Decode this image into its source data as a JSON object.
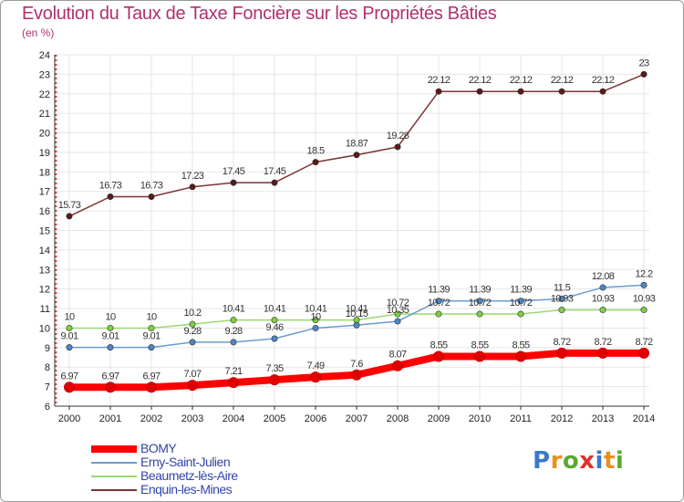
{
  "header": {
    "title": "Evolution du Taux de Taxe Foncière sur les Propriétés Bâties",
    "unit": "(en %)"
  },
  "logo": {
    "text": "Proxiti",
    "colors": [
      "#3b78c8",
      "#e8901c",
      "#5aaa30",
      "#e03030",
      "#3b78c8",
      "#e8901c",
      "#5aaa30"
    ]
  },
  "chart_data": {
    "type": "line",
    "title": "Evolution du Taux de Taxe Foncière sur les Propriétés Bâties",
    "ylabel": "(en %)",
    "xlabel": "",
    "ylim": [
      6,
      24
    ],
    "yticks": [
      6,
      7,
      8,
      9,
      10,
      11,
      12,
      13,
      14,
      15,
      16,
      17,
      18,
      19,
      20,
      21,
      22,
      23,
      24
    ],
    "categories": [
      "2000",
      "2001",
      "2002",
      "2003",
      "2004",
      "2005",
      "2006",
      "2007",
      "2008",
      "2009",
      "2010",
      "2011",
      "2012",
      "2013",
      "2014"
    ],
    "legend_position": "bottom-left",
    "series": [
      {
        "name": "BOMY",
        "color": "#ff0000",
        "marker": "#e00000",
        "thick": true,
        "values": [
          6.97,
          6.97,
          6.97,
          7.07,
          7.21,
          7.35,
          7.49,
          7.6,
          8.07,
          8.55,
          8.55,
          8.55,
          8.72,
          8.72,
          8.72
        ],
        "labels": [
          "6.97",
          "6.97",
          "6.97",
          "7.07",
          "7.21",
          "7.35",
          "7.49",
          "7.6",
          "8.07",
          "8.55",
          "8.55",
          "8.55",
          "8.72",
          "8.72",
          "8.72"
        ]
      },
      {
        "name": "Erny-Saint-Julien",
        "color": "#6a9ccc",
        "marker": "#4a86c8",
        "thick": false,
        "values": [
          9.01,
          9.01,
          9.01,
          9.28,
          9.28,
          9.46,
          10,
          10.15,
          10.35,
          11.39,
          11.39,
          11.39,
          11.5,
          12.08,
          12.2
        ],
        "labels": [
          "9.01",
          "9.01",
          "9.01",
          "9.28",
          "9.28",
          "9.46",
          "10",
          "10.15",
          "10.35",
          "11.39",
          "11.39",
          "11.39",
          "11.5",
          "12.08",
          "12.2"
        ]
      },
      {
        "name": "Beaumetz-lès-Aire",
        "color": "#9ad870",
        "marker": "#7cd040",
        "thick": false,
        "values": [
          10,
          10,
          10,
          10.2,
          10.41,
          10.41,
          10.41,
          10.41,
          10.72,
          10.72,
          10.72,
          10.72,
          10.93,
          10.93,
          10.93
        ],
        "labels": [
          "10",
          "10",
          "10",
          "10.2",
          "10.41",
          "10.41",
          "10.41",
          "10.41",
          "10.72",
          "10.72",
          "10.72",
          "10.72",
          "10.93",
          "10.93",
          "10.93"
        ]
      },
      {
        "name": "Enquin-les-Mines",
        "color": "#7a3434",
        "marker": "#5a1a1a",
        "thick": false,
        "values": [
          15.73,
          16.73,
          16.73,
          17.23,
          17.45,
          17.45,
          18.5,
          18.87,
          19.28,
          22.12,
          22.12,
          22.12,
          22.12,
          22.12,
          23
        ],
        "labels": [
          "15.73",
          "16.73",
          "16.73",
          "17.23",
          "17.45",
          "17.45",
          "18.5",
          "18.87",
          "19.28",
          "22.12",
          "22.12",
          "22.12",
          "22.12",
          "22.12",
          "23"
        ]
      }
    ]
  }
}
